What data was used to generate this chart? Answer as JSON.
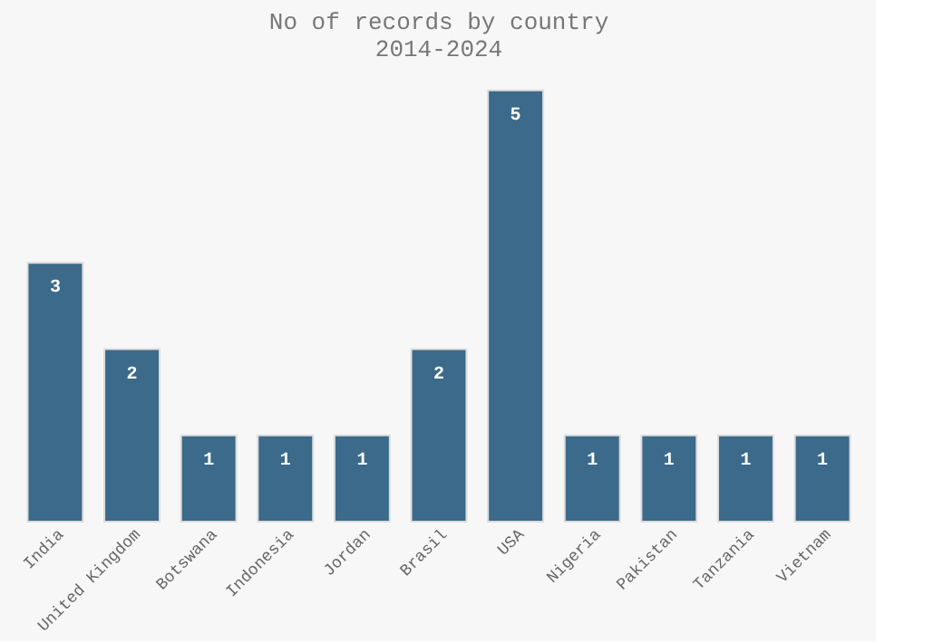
{
  "chart_data": {
    "type": "bar",
    "title": "No of records by country",
    "subtitle": "2014-2024",
    "categories": [
      "India",
      "United Kingdom",
      "Botswana",
      "Indonesia",
      "Jordan",
      "Brasil",
      "USA",
      "Nigeria",
      "Pakistan",
      "Tanzania",
      "Vietnam"
    ],
    "values": [
      3,
      2,
      1,
      1,
      1,
      2,
      5,
      1,
      1,
      1,
      1
    ],
    "color": "#3b6a8a",
    "data_labels": true,
    "tick_labels": "x",
    "grid": false
  }
}
